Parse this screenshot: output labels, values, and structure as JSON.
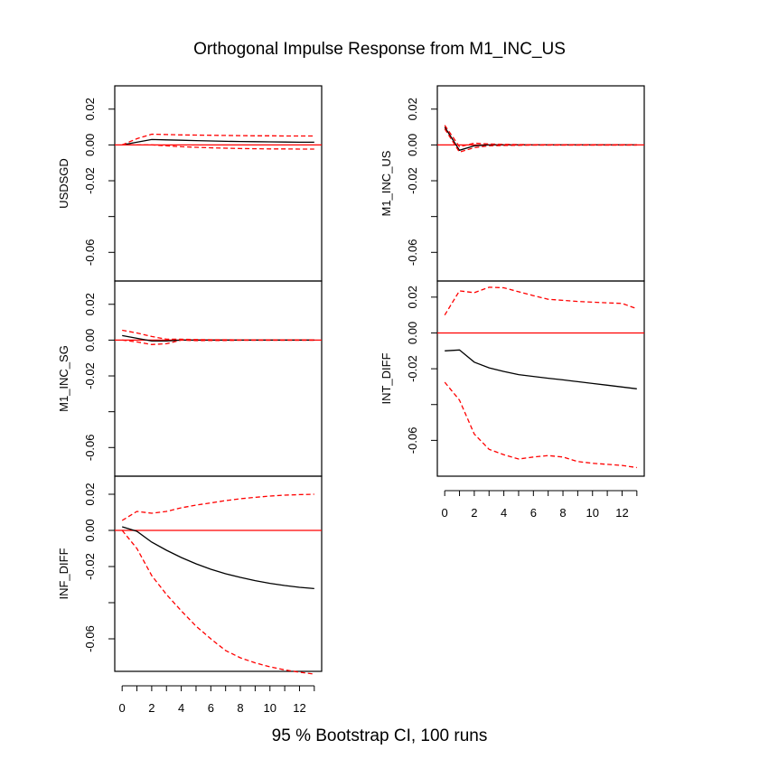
{
  "title": "Orthogonal Impulse Response from M1_INC_US",
  "footer": "95 % Bootstrap CI,  100 runs",
  "colors": {
    "response": "#000000",
    "ci": "#ff0000",
    "zero_line": "#ff0000",
    "frame": "#000000"
  },
  "chart_data": [
    {
      "type": "line",
      "panel": "USDSGD",
      "ylabel": "USDSGD",
      "x": [
        0,
        1,
        2,
        3,
        4,
        5,
        6,
        7,
        8,
        9,
        10,
        11,
        12,
        13
      ],
      "xticks": [
        "0",
        "2",
        "4",
        "6",
        "8",
        "10",
        "12"
      ],
      "yticks": [
        "0.02",
        "0.00",
        "-0.02",
        "-0.06"
      ],
      "ylim": [
        -0.076,
        0.033
      ],
      "series": [
        {
          "role": "response",
          "style": "solid",
          "values": [
            0.0,
            0.0015,
            0.003,
            0.0028,
            0.0026,
            0.0024,
            0.0022,
            0.002,
            0.0019,
            0.0018,
            0.0017,
            0.0016,
            0.0015,
            0.0015
          ]
        },
        {
          "role": "upper",
          "style": "dashed",
          "values": [
            0.0,
            0.0035,
            0.006,
            0.0058,
            0.0056,
            0.0055,
            0.0054,
            0.0053,
            0.0052,
            0.0051,
            0.0051,
            0.005,
            0.005,
            0.005
          ]
        },
        {
          "role": "lower",
          "style": "dashed",
          "values": [
            0.0,
            0.0,
            0.0,
            -0.0005,
            -0.001,
            -0.0013,
            -0.0016,
            -0.0018,
            -0.002,
            -0.0021,
            -0.0022,
            -0.0022,
            -0.0023,
            -0.0023
          ]
        }
      ],
      "hline": 0
    },
    {
      "type": "line",
      "panel": "M1_INC_US",
      "ylabel": "M1_INC_US",
      "x": [
        0,
        1,
        2,
        3,
        4,
        5,
        6,
        7,
        8,
        9,
        10,
        11,
        12,
        13
      ],
      "xticks": [
        "0",
        "2",
        "4",
        "6",
        "8",
        "10",
        "12"
      ],
      "yticks": [
        "0.02",
        "0.00",
        "-0.02",
        "-0.06"
      ],
      "ylim": [
        -0.076,
        0.033
      ],
      "series": [
        {
          "role": "response",
          "style": "solid",
          "values": [
            0.01,
            -0.003,
            -0.0005,
            0.0,
            0.0,
            0.0,
            0.0,
            0.0,
            0.0,
            0.0,
            0.0,
            0.0,
            0.0,
            0.0
          ]
        },
        {
          "role": "upper",
          "style": "dashed",
          "values": [
            0.011,
            -0.001,
            0.001,
            0.0005,
            0.0003,
            0.0002,
            0.0001,
            0.0001,
            0.0001,
            0.0001,
            0.0001,
            0.0001,
            0.0001,
            0.0001
          ]
        },
        {
          "role": "lower",
          "style": "dashed",
          "values": [
            0.009,
            -0.004,
            -0.0015,
            -0.0005,
            -0.0003,
            -0.0002,
            -0.0001,
            -0.0001,
            -0.0001,
            -0.0001,
            -0.0001,
            -0.0001,
            -0.0001,
            -0.0001
          ]
        }
      ],
      "hline": 0
    },
    {
      "type": "line",
      "panel": "M1_INC_SG",
      "ylabel": "M1_INC_SG",
      "x": [
        0,
        1,
        2,
        3,
        4,
        5,
        6,
        7,
        8,
        9,
        10,
        11,
        12,
        13
      ],
      "xticks": [
        "0",
        "2",
        "4",
        "6",
        "8",
        "10",
        "12"
      ],
      "yticks": [
        "0.02",
        "0.00",
        "-0.02",
        "-0.06"
      ],
      "ylim": [
        -0.076,
        0.033
      ],
      "series": [
        {
          "role": "response",
          "style": "solid",
          "values": [
            0.0025,
            0.001,
            -0.0005,
            -0.0005,
            0.0,
            0.0,
            0.0,
            0.0,
            0.0,
            0.0,
            0.0,
            0.0,
            0.0,
            0.0
          ]
        },
        {
          "role": "upper",
          "style": "dashed",
          "values": [
            0.0055,
            0.004,
            0.002,
            0.0005,
            0.0005,
            0.0003,
            0.0002,
            0.0002,
            0.0001,
            0.0001,
            0.0001,
            0.0001,
            0.0001,
            0.0001
          ]
        },
        {
          "role": "lower",
          "style": "dashed",
          "values": [
            0.0,
            -0.001,
            -0.0025,
            -0.002,
            0.0,
            -0.0003,
            -0.0002,
            -0.0002,
            -0.0001,
            -0.0001,
            -0.0001,
            -0.0001,
            -0.0001,
            -0.0001
          ]
        }
      ],
      "hline": 0
    },
    {
      "type": "line",
      "panel": "INT_DIFF",
      "ylabel": "INT_DIFF",
      "x": [
        0,
        1,
        2,
        3,
        4,
        5,
        6,
        7,
        8,
        9,
        10,
        11,
        12,
        13
      ],
      "xticks": [
        "0",
        "2",
        "4",
        "6",
        "8",
        "10",
        "12"
      ],
      "yticks": [
        "0.02",
        "0.00",
        "-0.02",
        "-0.06"
      ],
      "ylim": [
        -0.08,
        0.029
      ],
      "series": [
        {
          "role": "response",
          "style": "solid",
          "values": [
            -0.01,
            -0.0095,
            -0.0163,
            -0.0195,
            -0.0215,
            -0.0233,
            -0.0243,
            -0.0253,
            -0.0262,
            -0.0272,
            -0.0282,
            -0.0292,
            -0.0302,
            -0.0312
          ]
        },
        {
          "role": "upper",
          "style": "dashed",
          "values": [
            0.01,
            0.0235,
            0.0225,
            0.0255,
            0.0252,
            0.023,
            0.0208,
            0.0188,
            0.0182,
            0.0176,
            0.0172,
            0.0168,
            0.0165,
            0.0135
          ]
        },
        {
          "role": "lower",
          "style": "dashed",
          "values": [
            -0.0275,
            -0.0375,
            -0.0565,
            -0.065,
            -0.068,
            -0.0704,
            -0.0693,
            -0.0685,
            -0.0693,
            -0.0718,
            -0.0728,
            -0.0734,
            -0.074,
            -0.0752
          ]
        }
      ],
      "hline": 0
    },
    {
      "type": "line",
      "panel": "INF_DIFF",
      "ylabel": "INF_DIFF",
      "x": [
        0,
        1,
        2,
        3,
        4,
        5,
        6,
        7,
        8,
        9,
        10,
        11,
        12,
        13
      ],
      "xticks": [
        "0",
        "2",
        "4",
        "6",
        "8",
        "10",
        "12"
      ],
      "yticks": [
        "0.02",
        "0.00",
        "-0.02",
        "-0.06"
      ],
      "ylim": [
        -0.078,
        0.03
      ],
      "series": [
        {
          "role": "response",
          "style": "solid",
          "values": [
            0.002,
            -0.0005,
            -0.0065,
            -0.011,
            -0.015,
            -0.0185,
            -0.0215,
            -0.024,
            -0.026,
            -0.0278,
            -0.0293,
            -0.0305,
            -0.0315,
            -0.0322
          ]
        },
        {
          "role": "upper",
          "style": "dashed",
          "values": [
            0.0055,
            0.0105,
            0.0095,
            0.0105,
            0.0125,
            0.014,
            0.0152,
            0.0165,
            0.0175,
            0.0183,
            0.019,
            0.0195,
            0.0198,
            0.02
          ]
        },
        {
          "role": "lower",
          "style": "dashed",
          "values": [
            0.0,
            -0.01,
            -0.025,
            -0.0355,
            -0.0445,
            -0.053,
            -0.06,
            -0.0665,
            -0.0705,
            -0.0733,
            -0.0755,
            -0.0772,
            -0.0785,
            -0.0795
          ]
        }
      ],
      "hline": 0
    }
  ]
}
